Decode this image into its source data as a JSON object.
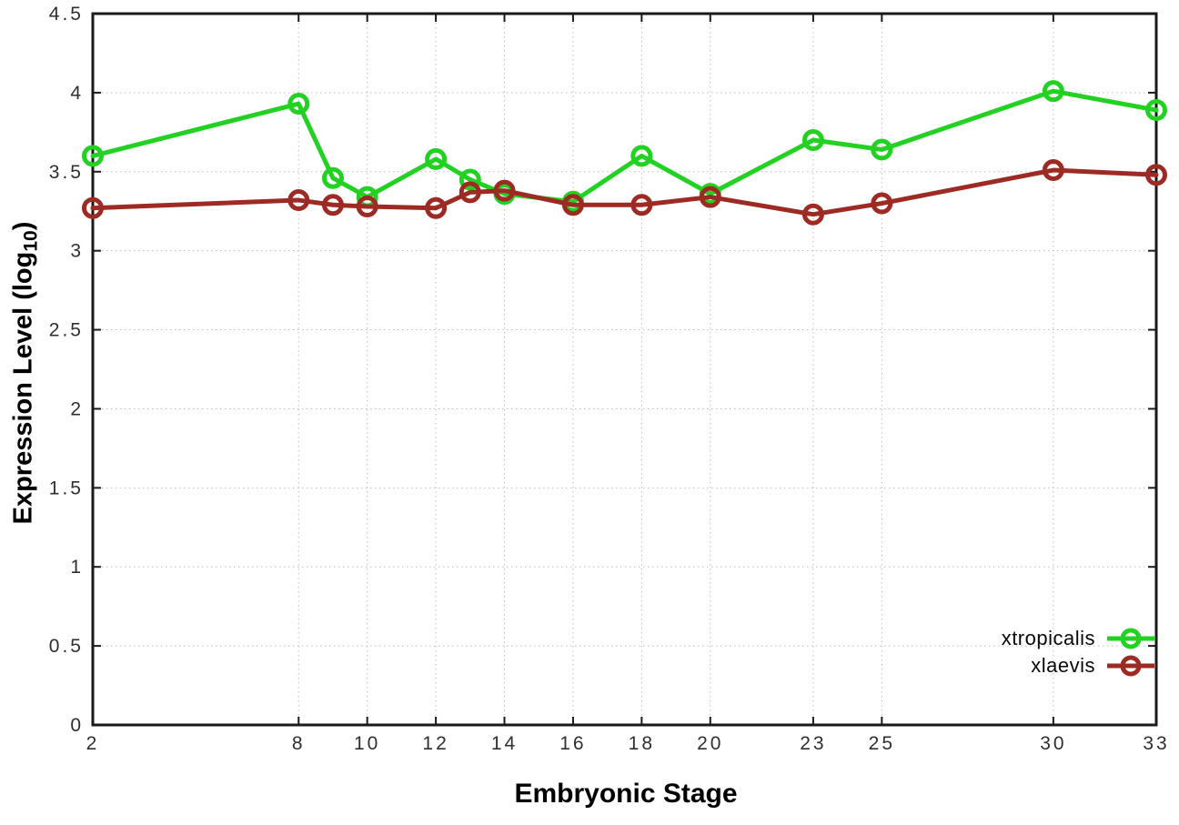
{
  "chart_data": {
    "type": "line",
    "title": "",
    "xlabel": "Embryonic Stage",
    "ylabel": "Expression Level (log10)",
    "ylabel_parts": {
      "main": "Expression Level (log",
      "sub": "10",
      "close": ")"
    },
    "xlim": [
      2,
      33
    ],
    "ylim": [
      0,
      4.5
    ],
    "grid": true,
    "legend_position": "bottom-right",
    "marker": "open-circle",
    "xticks": [
      2,
      8,
      10,
      12,
      14,
      16,
      18,
      20,
      23,
      25,
      30,
      33
    ],
    "xtick_labels": [
      "2",
      "8",
      "10",
      "12",
      "14",
      "16",
      "18",
      "20",
      "23",
      "25",
      "30",
      "33"
    ],
    "yticks": [
      0,
      0.5,
      1,
      1.5,
      2,
      2.5,
      3,
      3.5,
      4,
      4.5
    ],
    "ytick_labels": [
      "0",
      "0.5",
      "1",
      "1.5",
      "2",
      "2.5",
      "3",
      "3.5",
      "4",
      "4.5"
    ],
    "x": [
      2,
      8,
      9,
      10,
      12,
      13,
      14,
      16,
      18,
      20,
      23,
      25,
      30,
      33
    ],
    "series": [
      {
        "name": "xtropicalis",
        "color": "#23d123",
        "values": [
          3.6,
          3.93,
          3.46,
          3.34,
          3.58,
          3.45,
          3.36,
          3.31,
          3.6,
          3.36,
          3.7,
          3.64,
          4.01,
          3.89
        ]
      },
      {
        "name": "xlaevis",
        "color": "#9e2a24",
        "values": [
          3.27,
          3.32,
          3.29,
          3.28,
          3.27,
          3.37,
          3.38,
          3.29,
          3.29,
          3.34,
          3.23,
          3.3,
          3.51,
          3.48
        ]
      }
    ],
    "colors": {
      "background": "#ffffff",
      "axis": "#1a1a1a",
      "grid": "#bdbdbd",
      "tick_text": "#2f2f2f"
    }
  }
}
